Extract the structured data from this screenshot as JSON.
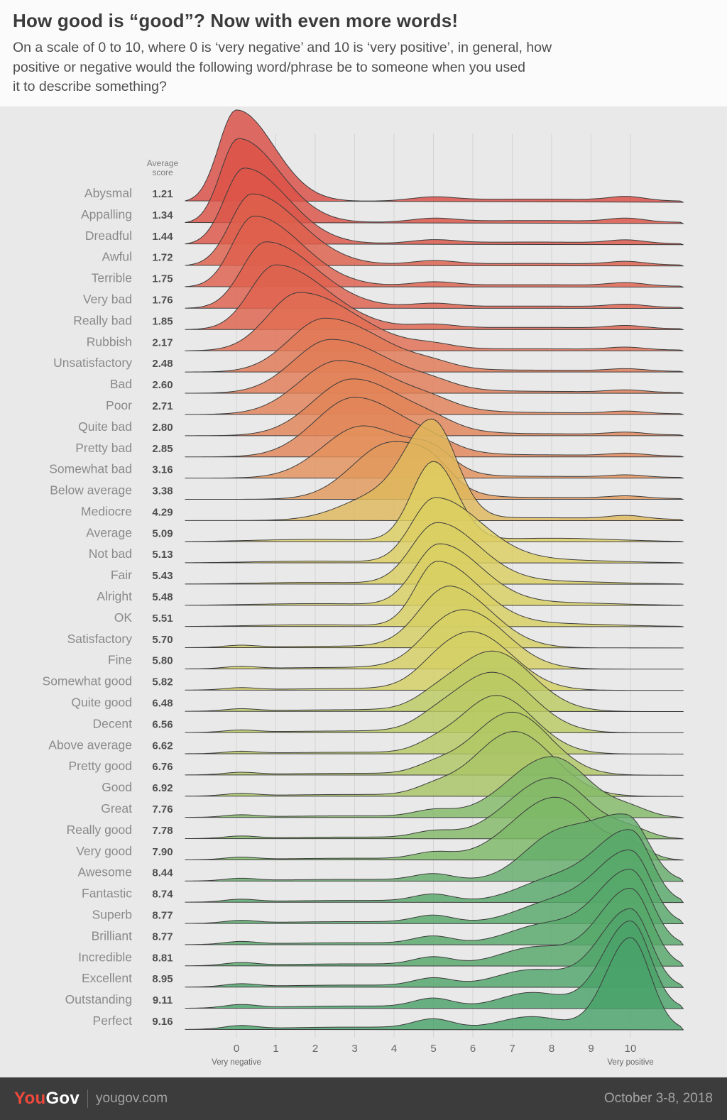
{
  "header": {
    "title": "How good is “good”? Now with even more words!",
    "subtitle_lines": [
      "On a scale of 0 to 10, where 0 is ‘very negative’ and 10 is ‘very positive’, in general, how",
      "positive or negative would the following word/phrase be to someone when you used",
      "it to describe something?"
    ]
  },
  "theme": {
    "bg": "#e9e9e9",
    "header-bg": "#fbfbfb",
    "footer-bg": "#3c3c3c",
    "brand-red": "#f0493c",
    "muted": "#a3a3a3",
    "grid": "#d4d4d4",
    "stroke": "#3c3c3c"
  },
  "chart_data": {
    "type": "area",
    "subtype": "ridgeline-density",
    "avg_header": [
      "Average",
      "score"
    ],
    "x_axis": {
      "ticks": [
        0,
        1,
        2,
        3,
        4,
        5,
        6,
        7,
        8,
        9,
        10
      ],
      "range": [
        0,
        10
      ],
      "min_label": "Very negative",
      "max_label": "Very positive"
    },
    "fill_opacity": 0.82,
    "color_stops": [
      {
        "at": 1.2,
        "color": "#db4d45"
      },
      {
        "at": 2.2,
        "color": "#e06f53"
      },
      {
        "at": 3.2,
        "color": "#e3925c"
      },
      {
        "at": 4.3,
        "color": "#dfb85c"
      },
      {
        "at": 5.1,
        "color": "#ddce62"
      },
      {
        "at": 5.8,
        "color": "#d5cf64"
      },
      {
        "at": 6.5,
        "color": "#bcca63"
      },
      {
        "at": 7.0,
        "color": "#a4c465"
      },
      {
        "at": 7.9,
        "color": "#7db868"
      },
      {
        "at": 8.5,
        "color": "#62ac6b"
      },
      {
        "at": 9.2,
        "color": "#46a169"
      }
    ],
    "series": [
      {
        "label": "Abysmal",
        "avg": 1.21,
        "peak": 0,
        "sl": 0.45,
        "sr": 0.95,
        "h": 1.0
      },
      {
        "label": "Appalling",
        "avg": 1.34,
        "peak": 0.05,
        "sl": 0.45,
        "sr": 1.05,
        "h": 0.92
      },
      {
        "label": "Dreadful",
        "avg": 1.44,
        "peak": 0.2,
        "sl": 0.5,
        "sr": 1.1,
        "h": 0.83
      },
      {
        "label": "Awful",
        "avg": 1.72,
        "peak": 0.4,
        "sl": 0.55,
        "sr": 1.2,
        "h": 0.78
      },
      {
        "label": "Terrible",
        "avg": 1.75,
        "peak": 0.45,
        "sl": 0.55,
        "sr": 1.2,
        "h": 0.77
      },
      {
        "label": "Very bad",
        "avg": 1.76,
        "peak": 0.75,
        "sl": 0.6,
        "sr": 1.25,
        "h": 0.72
      },
      {
        "label": "Really bad",
        "avg": 1.85,
        "peak": 1.0,
        "sl": 0.65,
        "sr": 1.3,
        "h": 0.7
      },
      {
        "label": "Rubbish",
        "avg": 2.17,
        "peak": 1.6,
        "sl": 0.8,
        "sr": 1.45,
        "h": 0.63
      },
      {
        "label": "Unsatisfactory",
        "avg": 2.48,
        "peak": 2.25,
        "sl": 0.9,
        "sr": 1.45,
        "h": 0.58
      },
      {
        "label": "Bad",
        "avg": 2.6,
        "peak": 2.4,
        "sl": 0.95,
        "sr": 1.5,
        "h": 0.58
      },
      {
        "label": "Poor",
        "avg": 2.71,
        "peak": 2.6,
        "sl": 1.0,
        "sr": 1.5,
        "h": 0.58
      },
      {
        "label": "Quite bad",
        "avg": 2.8,
        "peak": 2.95,
        "sl": 1.0,
        "sr": 1.35,
        "h": 0.61
      },
      {
        "label": "Pretty bad",
        "avg": 2.85,
        "peak": 3.0,
        "sl": 1.0,
        "sr": 1.3,
        "h": 0.64
      },
      {
        "label": "Somewhat bad",
        "avg": 3.16,
        "peak": 3.2,
        "sl": 1.0,
        "sr": 1.2,
        "h": 0.56,
        "bumps": [
          {
            "p": 5,
            "s": 0.5,
            "h": 0.22
          }
        ]
      },
      {
        "label": "Below average",
        "avg": 3.38,
        "peak": 3.9,
        "sl": 0.95,
        "sr": 1.0,
        "h": 0.6,
        "bumps": [
          {
            "p": 5,
            "s": 0.45,
            "h": 0.15
          }
        ]
      },
      {
        "label": "Mediocre",
        "avg": 4.29,
        "peak": 5.0,
        "sl": 0.7,
        "sr": 0.6,
        "h": 0.88,
        "bumps": [
          {
            "p": 3.6,
            "s": 0.95,
            "h": 0.28
          }
        ]
      },
      {
        "label": "Average",
        "avg": 5.09,
        "peak": 5.0,
        "sl": 0.55,
        "sr": 0.6,
        "h": 0.86
      },
      {
        "label": "Not bad",
        "avg": 5.13,
        "peak": 5.05,
        "sl": 0.6,
        "sr": 1.15,
        "h": 0.7
      },
      {
        "label": "Fair",
        "avg": 5.43,
        "peak": 5.1,
        "sl": 0.65,
        "sr": 1.05,
        "h": 0.66
      },
      {
        "label": "Alright",
        "avg": 5.48,
        "peak": 5.15,
        "sl": 0.62,
        "sr": 1.05,
        "h": 0.66
      },
      {
        "label": "OK",
        "avg": 5.51,
        "peak": 5.1,
        "sl": 0.55,
        "sr": 1.05,
        "h": 0.7
      },
      {
        "label": "Satisfactory",
        "avg": 5.7,
        "peak": 5.5,
        "sl": 0.8,
        "sr": 1.0,
        "h": 0.62
      },
      {
        "label": "Fine",
        "avg": 5.8,
        "peak": 5.85,
        "sl": 0.9,
        "sr": 1.0,
        "h": 0.62
      },
      {
        "label": "Somewhat good",
        "avg": 5.82,
        "peak": 6.0,
        "sl": 0.9,
        "sr": 1.0,
        "h": 0.62
      },
      {
        "label": "Quite good",
        "avg": 6.48,
        "peak": 6.5,
        "sl": 1.0,
        "sr": 1.0,
        "h": 0.65
      },
      {
        "label": "Decent",
        "avg": 6.56,
        "peak": 6.5,
        "sl": 1.0,
        "sr": 1.0,
        "h": 0.65
      },
      {
        "label": "Above average",
        "avg": 6.62,
        "peak": 6.6,
        "sl": 0.9,
        "sr": 0.95,
        "h": 0.63
      },
      {
        "label": "Pretty good",
        "avg": 6.76,
        "peak": 7.0,
        "sl": 1.0,
        "sr": 0.95,
        "h": 0.68
      },
      {
        "label": "Good",
        "avg": 6.92,
        "peak": 7.05,
        "sl": 1.0,
        "sr": 1.0,
        "h": 0.7
      },
      {
        "label": "Great",
        "avg": 7.76,
        "peak": 8.0,
        "sl": 1.1,
        "sr": 0.95,
        "h": 0.66,
        "bumps": [
          {
            "p": 10,
            "s": 0.5,
            "h": 0.12
          }
        ]
      },
      {
        "label": "Really good",
        "avg": 7.78,
        "peak": 8.0,
        "sl": 1.1,
        "sr": 0.95,
        "h": 0.66,
        "bumps": [
          {
            "p": 10,
            "s": 0.5,
            "h": 0.13
          }
        ]
      },
      {
        "label": "Very good",
        "avg": 7.9,
        "peak": 8.1,
        "sl": 1.1,
        "sr": 0.9,
        "h": 0.68,
        "bumps": [
          {
            "p": 10,
            "s": 0.45,
            "h": 0.22
          }
        ]
      },
      {
        "label": "Awesome",
        "avg": 8.44,
        "peak": 9.9,
        "sl": 1.0,
        "sr": 0.55,
        "h": 0.7,
        "bumps": [
          {
            "p": 8,
            "s": 0.8,
            "h": 0.6
          }
        ]
      },
      {
        "label": "Fantastic",
        "avg": 8.74,
        "peak": 10,
        "sl": 0.9,
        "sr": 0.52,
        "h": 0.77,
        "bumps": [
          {
            "p": 8,
            "s": 0.9,
            "h": 0.3
          }
        ]
      },
      {
        "label": "Superb",
        "avg": 8.77,
        "peak": 10,
        "sl": 0.88,
        "sr": 0.52,
        "h": 0.78,
        "bumps": [
          {
            "p": 8,
            "s": 0.9,
            "h": 0.28
          }
        ]
      },
      {
        "label": "Brilliant",
        "avg": 8.77,
        "peak": 10,
        "sl": 0.85,
        "sr": 0.52,
        "h": 0.81,
        "bumps": [
          {
            "p": 7.8,
            "s": 0.9,
            "h": 0.26
          }
        ]
      },
      {
        "label": "Incredible",
        "avg": 8.81,
        "peak": 10,
        "sl": 0.8,
        "sr": 0.52,
        "h": 0.84,
        "bumps": [
          {
            "p": 7.6,
            "s": 0.9,
            "h": 0.24
          }
        ]
      },
      {
        "label": "Excellent",
        "avg": 8.95,
        "peak": 10,
        "sl": 0.78,
        "sr": 0.5,
        "h": 0.85,
        "bumps": [
          {
            "p": 7.5,
            "s": 0.9,
            "h": 0.22
          }
        ]
      },
      {
        "label": "Outstanding",
        "avg": 9.11,
        "peak": 10,
        "sl": 0.7,
        "sr": 0.5,
        "h": 0.95,
        "bumps": [
          {
            "p": 7.5,
            "s": 0.8,
            "h": 0.18
          }
        ]
      },
      {
        "label": "Perfect",
        "avg": 9.16,
        "peak": 10,
        "sl": 0.62,
        "sr": 0.5,
        "h": 1.0,
        "bumps": [
          {
            "p": 7.5,
            "s": 0.8,
            "h": 0.14
          }
        ]
      }
    ]
  },
  "footer": {
    "brand_you": "You",
    "brand_gov": "Gov",
    "site": "yougov.com",
    "date": "October 3-8, 2018"
  }
}
